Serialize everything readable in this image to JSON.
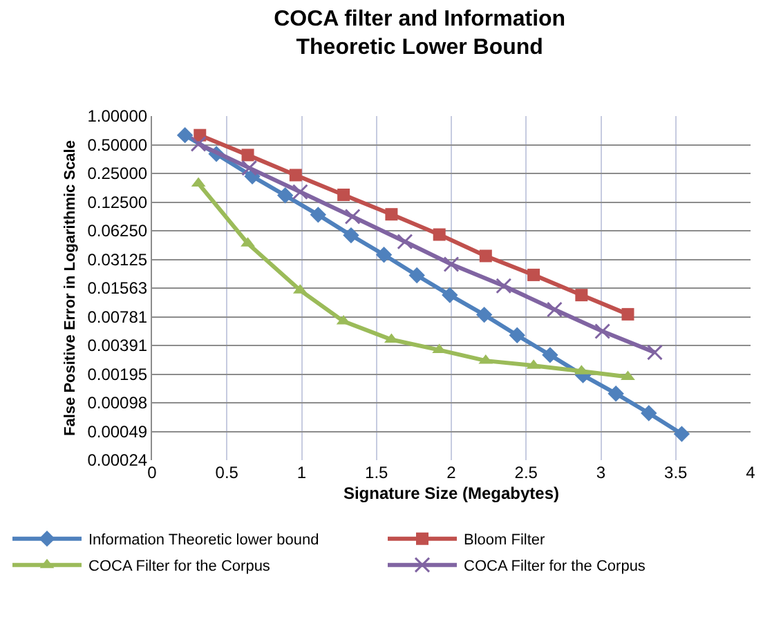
{
  "chart_data": {
    "type": "line",
    "title": "COCA filter and Information Theoretic Lower Bound",
    "xlabel": "Signature Size (Megabytes)",
    "ylabel": "False Positive Error in Logarithmic Scale",
    "log": true,
    "grid": true,
    "legend": "bottom",
    "xlim": [
      0,
      4
    ],
    "xticks": [
      0,
      0.5,
      1,
      1.5,
      2,
      2.5,
      3,
      3.5,
      4
    ],
    "ylim": [
      0.000244140625,
      1
    ],
    "yticks": [
      {
        "value": 1,
        "label": "1.00000"
      },
      {
        "value": 0.5,
        "label": "0.50000"
      },
      {
        "value": 0.25,
        "label": "0.25000"
      },
      {
        "value": 0.125,
        "label": "0.12500"
      },
      {
        "value": 0.0625,
        "label": "0.06250"
      },
      {
        "value": 0.03125,
        "label": "0.03125"
      },
      {
        "value": 0.015625,
        "label": "0.01563"
      },
      {
        "value": 0.0078125,
        "label": "0.00781"
      },
      {
        "value": 0.00390625,
        "label": "0.00391"
      },
      {
        "value": 0.001953125,
        "label": "0.00195"
      },
      {
        "value": 0.0009765625,
        "label": "0.00098"
      },
      {
        "value": 0.00048828125,
        "label": "0.00049"
      },
      {
        "value": 0.000244140625,
        "label": "0.00024"
      }
    ],
    "series": [
      {
        "name": "Information Theoretic lower bound",
        "color": "#4f81bd",
        "marker": "diamond",
        "x": [
          0.22,
          0.43,
          0.67,
          0.89,
          1.11,
          1.33,
          1.55,
          1.77,
          1.99,
          2.22,
          2.44,
          2.66,
          2.88,
          3.1,
          3.32,
          3.54
        ],
        "values": [
          0.63,
          0.4,
          0.233,
          0.147,
          0.092,
          0.056,
          0.035,
          0.0213,
          0.0132,
          0.0082,
          0.005,
          0.0031,
          0.0019,
          0.00122,
          0.00076,
          0.00046
        ]
      },
      {
        "name": "Bloom Filter",
        "color": "#c0504d",
        "marker": "square",
        "x": [
          0.32,
          0.64,
          0.96,
          1.28,
          1.6,
          1.92,
          2.23,
          2.55,
          2.87,
          3.18
        ],
        "values": [
          0.63,
          0.39,
          0.24,
          0.149,
          0.093,
          0.057,
          0.034,
          0.0215,
          0.0132,
          0.0083
        ]
      },
      {
        "name": "COCA Filter for the Corpus",
        "color": "#9bbb59",
        "marker": "triangle",
        "x": [
          0.31,
          0.64,
          0.99,
          1.28,
          1.6,
          1.92,
          2.23,
          2.55,
          2.87,
          3.18
        ],
        "values": [
          0.196,
          0.046,
          0.0148,
          0.007,
          0.0045,
          0.0035,
          0.0027,
          0.0024,
          0.0021,
          0.00183
        ]
      },
      {
        "name": "COCA Filter for the Corpus",
        "color": "#8064a2",
        "marker": "cross",
        "x": [
          0.31,
          0.65,
          0.99,
          1.34,
          1.69,
          2.0,
          2.35,
          2.69,
          3.01,
          3.36
        ],
        "values": [
          0.51,
          0.285,
          0.16,
          0.088,
          0.048,
          0.0278,
          0.0165,
          0.0093,
          0.0055,
          0.0033
        ]
      }
    ]
  }
}
